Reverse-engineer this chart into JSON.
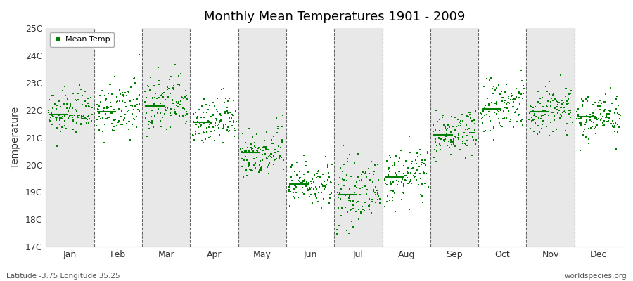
{
  "title": "Monthly Mean Temperatures 1901 - 2009",
  "ylabel": "Temperature",
  "xlabel_labels": [
    "Jan",
    "Feb",
    "Mar",
    "Apr",
    "May",
    "Jun",
    "Jul",
    "Aug",
    "Sep",
    "Oct",
    "Nov",
    "Dec"
  ],
  "ytick_labels": [
    "17C",
    "18C",
    "19C",
    "20C",
    "21C",
    "22C",
    "23C",
    "24C",
    "25C"
  ],
  "ytick_values": [
    17,
    18,
    19,
    20,
    21,
    22,
    23,
    24,
    25
  ],
  "ylim": [
    17,
    25
  ],
  "background_color": "#ffffff",
  "plot_bg_color": "#ffffff",
  "stripe_color": "#e8e8e8",
  "dot_color": "#008000",
  "dot_size": 3,
  "mean_line_color": "#008000",
  "subtitle_left": "Latitude -3.75 Longitude 35.25",
  "subtitle_right": "worldspecies.org",
  "legend_label": "Mean Temp",
  "n_years": 109,
  "monthly_means": [
    21.85,
    21.95,
    22.15,
    21.55,
    20.45,
    19.3,
    18.9,
    19.55,
    21.1,
    22.05,
    21.95,
    21.75
  ],
  "monthly_stds": [
    0.38,
    0.48,
    0.55,
    0.42,
    0.48,
    0.42,
    0.55,
    0.48,
    0.4,
    0.55,
    0.48,
    0.42
  ]
}
